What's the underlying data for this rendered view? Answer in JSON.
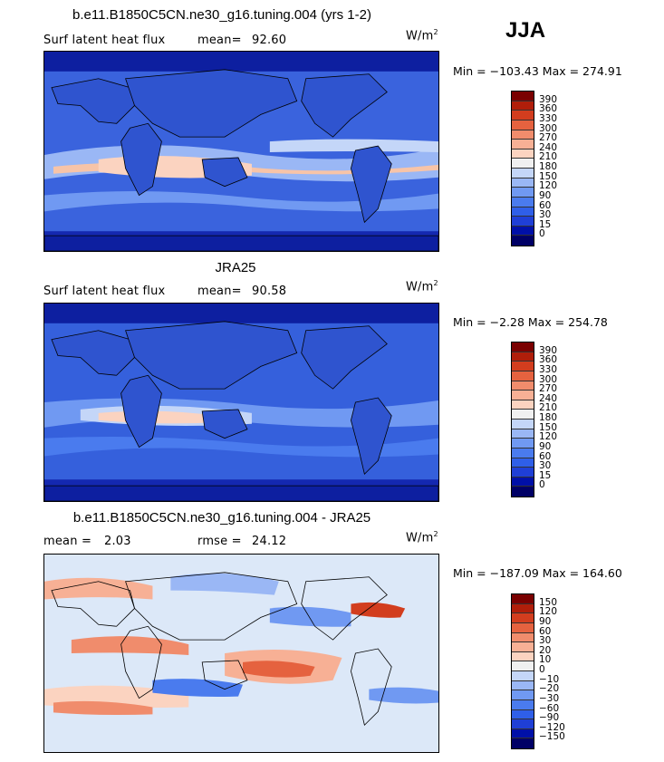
{
  "season": "JJA",
  "panels": [
    {
      "title": "b.e11.B1850C5CN.ne30_g16.tuning.004 (yrs 1-2)",
      "variable": "Surf latent heat flux",
      "stat1_label": "mean=",
      "stat1_value": "92.60",
      "stat2_label": "",
      "stat2_value": "",
      "unit": "W/m",
      "unit_sup": "2",
      "minmax": "Min = −103.43  Max = 274.91",
      "legend_labels": [
        "390",
        "360",
        "330",
        "300",
        "270",
        "240",
        "210",
        "180",
        "150",
        "120",
        "90",
        "60",
        "30",
        "15",
        "0"
      ]
    },
    {
      "title": "JRA25",
      "variable": "Surf latent heat flux",
      "stat1_label": "mean=",
      "stat1_value": "90.58",
      "stat2_label": "",
      "stat2_value": "",
      "unit": "W/m",
      "unit_sup": "2",
      "minmax": "Min =  −2.28  Max = 254.78",
      "legend_labels": [
        "390",
        "360",
        "330",
        "300",
        "270",
        "240",
        "210",
        "180",
        "150",
        "120",
        "90",
        "60",
        "30",
        "15",
        "0"
      ]
    },
    {
      "title": "b.e11.B1850C5CN.ne30_g16.tuning.004 - JRA25",
      "variable": "",
      "stat1_label": "mean =",
      "stat1_value": "2.03",
      "stat2_label": "rmse =",
      "stat2_value": "24.12",
      "unit": "W/m",
      "unit_sup": "2",
      "minmax": "Min = −187.09  Max = 164.60",
      "legend_labels": [
        "150",
        "120",
        "90",
        "60",
        "30",
        "20",
        "10",
        "0",
        "−10",
        "−20",
        "−30",
        "−60",
        "−90",
        "−120",
        "−150"
      ]
    }
  ],
  "chart_data": [
    {
      "type": "heatmap",
      "title": "b.e11.B1850C5CN.ne30_g16.tuning.004 (yrs 1-2)",
      "subtitle": "Surf latent heat flux",
      "units": "W/m2",
      "mean": 92.6,
      "min": -103.43,
      "max": 274.91,
      "levels": [
        0,
        15,
        30,
        60,
        90,
        120,
        150,
        180,
        210,
        240,
        270,
        300,
        330,
        360,
        390
      ],
      "colors": [
        "#000066",
        "#0010a8",
        "#1f3fd6",
        "#2f5fe8",
        "#4a7bee",
        "#7099f2",
        "#9ab7f5",
        "#c4d6f8",
        "#f0f0f0",
        "#fbd3c0",
        "#f7b095",
        "#f08c6c",
        "#e5623f",
        "#d23d1e",
        "#b01e0a",
        "#7a0000"
      ]
    },
    {
      "type": "heatmap",
      "title": "JRA25",
      "subtitle": "Surf latent heat flux",
      "units": "W/m2",
      "mean": 90.58,
      "min": -2.28,
      "max": 254.78,
      "levels": [
        0,
        15,
        30,
        60,
        90,
        120,
        150,
        180,
        210,
        240,
        270,
        300,
        330,
        360,
        390
      ],
      "colors": [
        "#000066",
        "#0010a8",
        "#1f3fd6",
        "#2f5fe8",
        "#4a7bee",
        "#7099f2",
        "#9ab7f5",
        "#c4d6f8",
        "#f0f0f0",
        "#fbd3c0",
        "#f7b095",
        "#f08c6c",
        "#e5623f",
        "#d23d1e",
        "#b01e0a",
        "#7a0000"
      ]
    },
    {
      "type": "heatmap",
      "title": "b.e11.B1850C5CN.ne30_g16.tuning.004 - JRA25",
      "units": "W/m2",
      "mean": 2.03,
      "rmse": 24.12,
      "min": -187.09,
      "max": 164.6,
      "levels": [
        -150,
        -120,
        -90,
        -60,
        -30,
        -20,
        -10,
        0,
        10,
        20,
        30,
        60,
        90,
        120,
        150
      ],
      "colors": [
        "#000066",
        "#0010a8",
        "#1f3fd6",
        "#2f5fe8",
        "#4a7bee",
        "#7099f2",
        "#9ab7f5",
        "#c4d6f8",
        "#f0f0f0",
        "#fbd3c0",
        "#f7b095",
        "#f08c6c",
        "#e5623f",
        "#d23d1e",
        "#b01e0a",
        "#7a0000"
      ]
    }
  ]
}
